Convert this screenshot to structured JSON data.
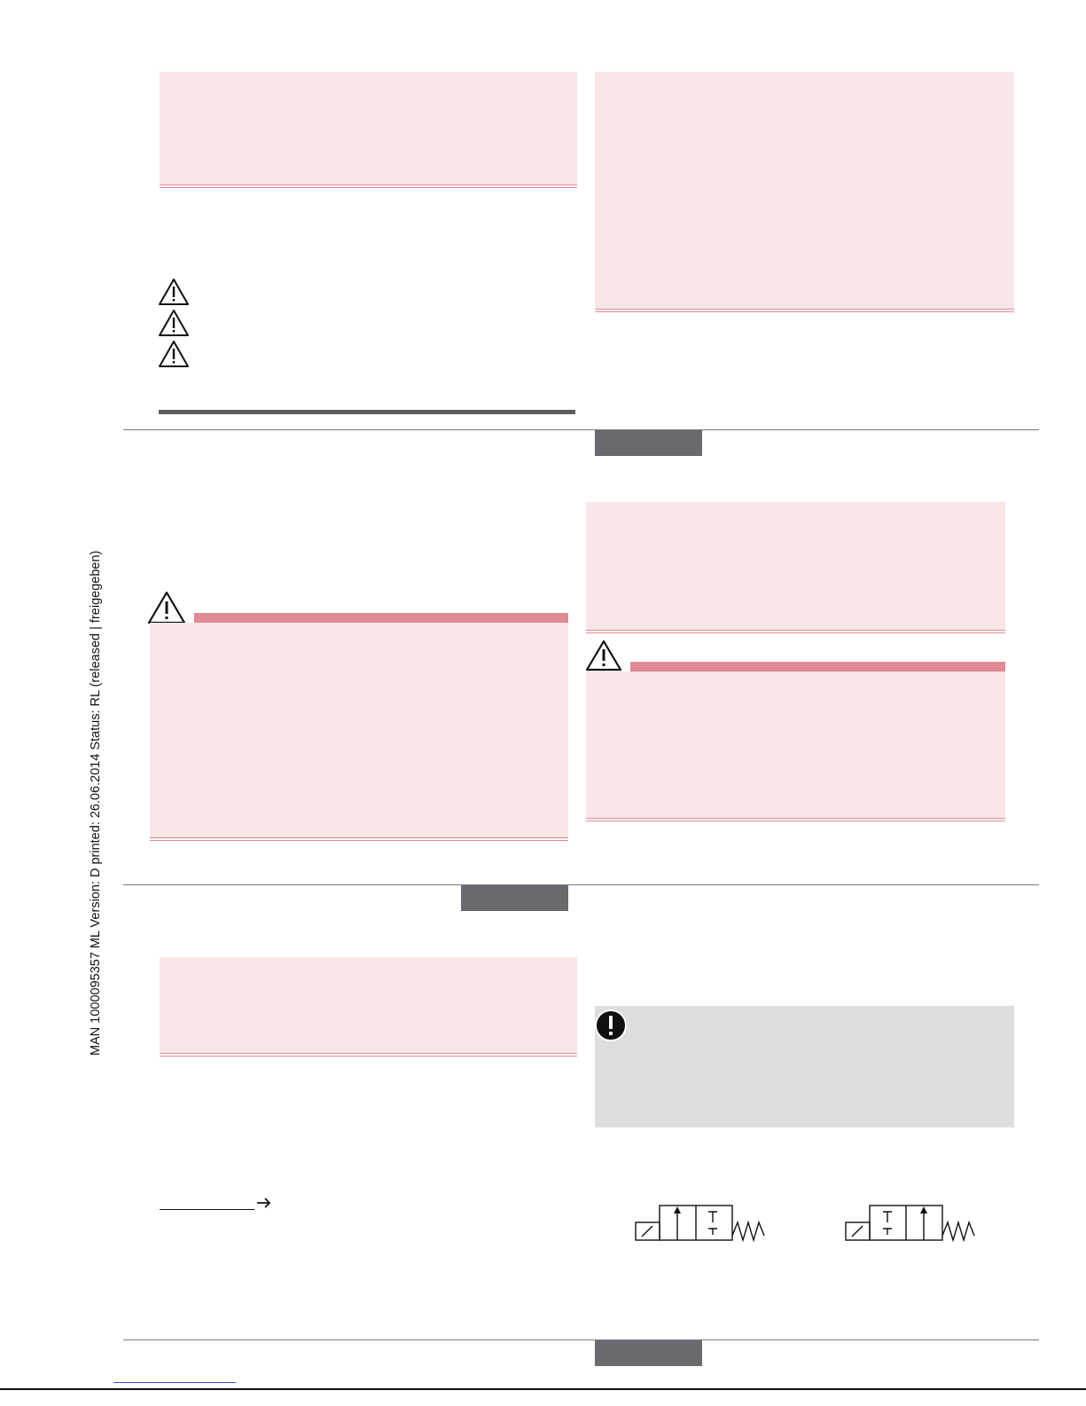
{
  "sidebar": {
    "footer_text": "MAN  1000095357  ML  Version: D   printed: 26.06.2014 Status: RL (released | freigegeben)"
  },
  "icons": {
    "warning": "warning-triangle-icon",
    "important": "exclamation-circle-icon",
    "arrow": "right-arrow-icon"
  },
  "colors": {
    "pink_box": "#f9e6e6",
    "pink_rule": "#e08a93",
    "tab_gray": "#686a6f",
    "note_gray": "#dedede"
  }
}
